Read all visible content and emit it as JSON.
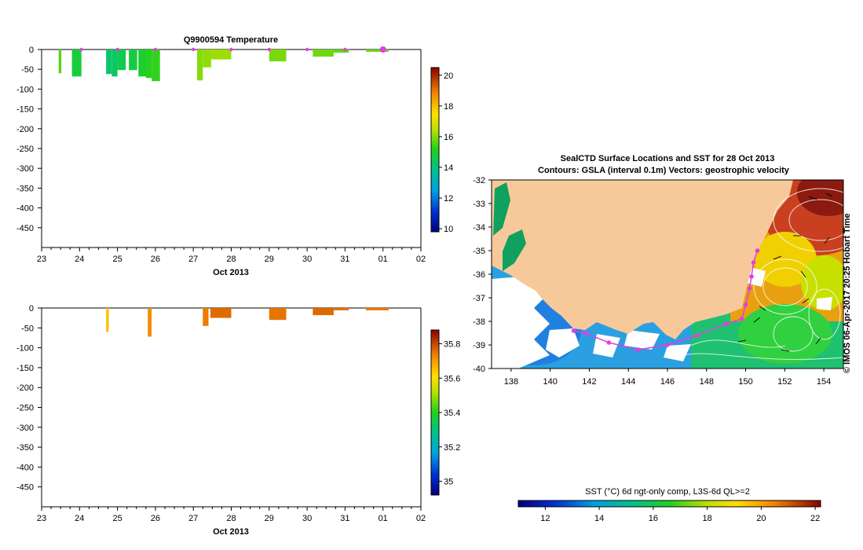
{
  "chart_data": [
    {
      "type": "bar",
      "title": "Q9900594  Temperature",
      "xlabel": "Oct 2013",
      "x_ticks": [
        "23",
        "24",
        "25",
        "26",
        "27",
        "28",
        "29",
        "30",
        "31",
        "01",
        "02"
      ],
      "x_range": [
        23,
        33
      ],
      "y_ticks": [
        "0",
        "-50",
        "-100",
        "-150",
        "-200",
        "-250",
        "-300",
        "-350",
        "-400",
        "-450"
      ],
      "y_range": [
        -500,
        0
      ],
      "colorbar": {
        "ticks": [
          "20",
          "18",
          "16",
          "14",
          "12",
          "10"
        ],
        "range": [
          9.8,
          20.5
        ]
      },
      "profiles": [
        {
          "day": 23.45,
          "width": 0.07,
          "depth": -60,
          "value": 15.6
        },
        {
          "day": 23.8,
          "width": 0.25,
          "depth": -68,
          "value": 14.8
        },
        {
          "day": 24.7,
          "width": 0.15,
          "depth": -62,
          "value": 14.2
        },
        {
          "day": 24.85,
          "width": 0.15,
          "depth": -68,
          "value": 14.3
        },
        {
          "day": 25.0,
          "width": 0.22,
          "depth": -52,
          "value": 14.6
        },
        {
          "day": 25.3,
          "width": 0.22,
          "depth": -52,
          "value": 14.7
        },
        {
          "day": 25.55,
          "width": 0.22,
          "depth": -68,
          "value": 15.0
        },
        {
          "day": 25.75,
          "width": 0.15,
          "depth": -72,
          "value": 15.2
        },
        {
          "day": 25.9,
          "width": 0.22,
          "depth": -80,
          "value": 15.3
        },
        {
          "day": 27.1,
          "width": 0.15,
          "depth": -78,
          "value": 16.0
        },
        {
          "day": 27.25,
          "width": 0.22,
          "depth": -45,
          "value": 16.1
        },
        {
          "day": 27.45,
          "width": 0.55,
          "depth": -25,
          "value": 16.2
        },
        {
          "day": 29.0,
          "width": 0.45,
          "depth": -30,
          "value": 15.9
        },
        {
          "day": 30.15,
          "width": 0.55,
          "depth": -18,
          "value": 15.8
        },
        {
          "day": 30.7,
          "width": 0.4,
          "depth": -8,
          "value": 15.7
        },
        {
          "day": 31.55,
          "width": 0.6,
          "depth": -6,
          "value": 15.8
        }
      ]
    },
    {
      "type": "bar",
      "title": "",
      "xlabel": "Oct 2013",
      "x_ticks": [
        "23",
        "24",
        "25",
        "26",
        "27",
        "28",
        "29",
        "30",
        "31",
        "01",
        "02"
      ],
      "x_range": [
        23,
        33
      ],
      "y_ticks": [
        "0",
        "-50",
        "-100",
        "-150",
        "-200",
        "-250",
        "-300",
        "-350",
        "-400",
        "-450"
      ],
      "y_range": [
        -500,
        0
      ],
      "colorbar": {
        "ticks": [
          "35.8",
          "35.6",
          "35.4",
          "35.2",
          "35"
        ],
        "range": [
          34.92,
          35.88
        ]
      },
      "profiles": [
        {
          "day": 24.7,
          "width": 0.07,
          "depth": -60,
          "value": 35.65
        },
        {
          "day": 25.8,
          "width": 0.1,
          "depth": -72,
          "value": 35.72
        },
        {
          "day": 27.25,
          "width": 0.15,
          "depth": -45,
          "value": 35.74
        },
        {
          "day": 27.45,
          "width": 0.55,
          "depth": -25,
          "value": 35.76
        },
        {
          "day": 29.0,
          "width": 0.45,
          "depth": -30,
          "value": 35.75
        },
        {
          "day": 30.15,
          "width": 0.55,
          "depth": -18,
          "value": 35.76
        },
        {
          "day": 30.7,
          "width": 0.4,
          "depth": -6,
          "value": 35.75
        },
        {
          "day": 31.55,
          "width": 0.6,
          "depth": -6,
          "value": 35.74
        }
      ]
    },
    {
      "type": "heatmap",
      "title": "SealCTD Surface Locations and SST for 28 Oct 2013",
      "subtitle": "Contours: GSLA (interval 0.1m) Vectors: geostrophic velocity",
      "x_ticks": [
        "138",
        "140",
        "142",
        "144",
        "146",
        "148",
        "150",
        "152",
        "154"
      ],
      "x_range": [
        137,
        155
      ],
      "y_ticks": [
        "-32",
        "-33",
        "-34",
        "-35",
        "-36",
        "-37",
        "-38",
        "-39",
        "-40"
      ],
      "y_range": [
        -40,
        -32
      ],
      "side_label": "© IMOS 06-Apr-2017 20:25 Hobart Time",
      "colorbar": {
        "label": "SST (°C) 6d ngt-only comp, L3S-6d QL>=2",
        "ticks": [
          "12",
          "14",
          "16",
          "18",
          "20",
          "22"
        ],
        "range": [
          11,
          22.2
        ]
      },
      "seal_track": [
        {
          "lon": 150.6,
          "lat": -35.0
        },
        {
          "lon": 150.4,
          "lat": -35.5
        },
        {
          "lon": 150.3,
          "lat": -36.1
        },
        {
          "lon": 150.2,
          "lat": -36.6
        },
        {
          "lon": 150.0,
          "lat": -37.3
        },
        {
          "lon": 149.8,
          "lat": -37.9
        },
        {
          "lon": 149.0,
          "lat": -38.1
        },
        {
          "lon": 147.5,
          "lat": -38.6
        },
        {
          "lon": 146.0,
          "lat": -39.0
        },
        {
          "lon": 144.5,
          "lat": -39.2
        },
        {
          "lon": 143.0,
          "lat": -38.9
        },
        {
          "lon": 141.8,
          "lat": -38.5
        },
        {
          "lon": 141.2,
          "lat": -38.4
        }
      ]
    }
  ],
  "colors": {
    "land": "#f7c99a",
    "track": "#e040e0",
    "cloud": "#ffffff"
  }
}
